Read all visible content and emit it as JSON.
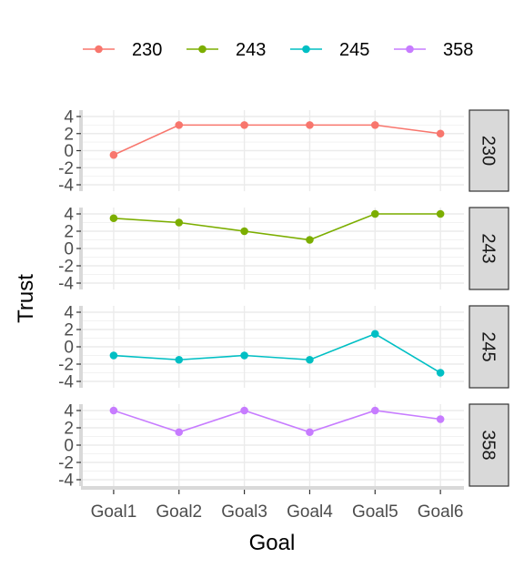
{
  "chart_data": {
    "type": "line",
    "xlabel": "Goal",
    "ylabel": "Trust",
    "categories": [
      "Goal1",
      "Goal2",
      "Goal3",
      "Goal4",
      "Goal5",
      "Goal6"
    ],
    "ylim": [
      -4,
      4
    ],
    "yticks": [
      4,
      2,
      0,
      -2,
      -4
    ],
    "grid": true,
    "facet": "rows",
    "legend_position": "top",
    "series": [
      {
        "name": "230",
        "color": "#F8766D",
        "values": [
          -0.5,
          3,
          3,
          3,
          3,
          2
        ]
      },
      {
        "name": "243",
        "color": "#7CAE00",
        "values": [
          3.5,
          3,
          2,
          1,
          4,
          4
        ]
      },
      {
        "name": "245",
        "color": "#00BFC4",
        "values": [
          -1,
          -1.5,
          -1,
          -1.5,
          1.5,
          -3
        ]
      },
      {
        "name": "358",
        "color": "#C77CFF",
        "values": [
          4,
          1.5,
          4,
          1.5,
          4,
          3
        ]
      }
    ]
  }
}
